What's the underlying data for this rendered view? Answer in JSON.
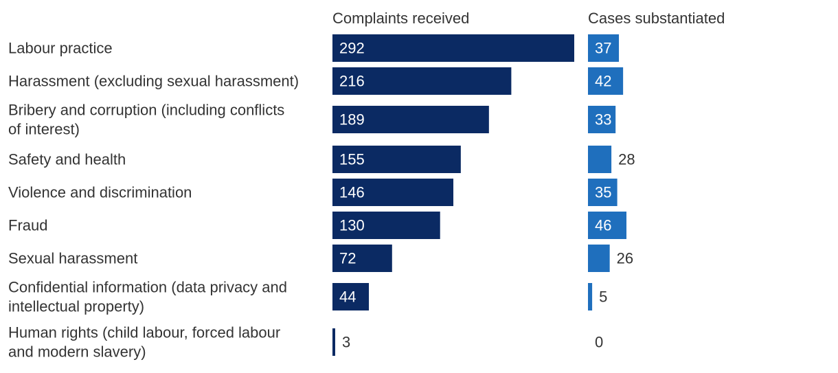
{
  "colors": {
    "complaints": "#0b2a63",
    "substantiated": "#1f6fbd",
    "text": "#333333",
    "label_inside": "#ffffff"
  },
  "chart_data": {
    "type": "bar",
    "orientation": "horizontal",
    "categories": [
      [
        "Labour practice"
      ],
      [
        "Harassment (excluding sexual harassment)"
      ],
      [
        "Bribery and corruption (including conflicts",
        "of interest)"
      ],
      [
        "Safety and health"
      ],
      [
        "Violence and discrimination"
      ],
      [
        "Fraud"
      ],
      [
        "Sexual harassment"
      ],
      [
        "Confidential information (data privacy and",
        "intellectual property)"
      ],
      [
        "Human rights (child labour, forced labour",
        "and modern slavery)"
      ]
    ],
    "series": [
      {
        "name": "Complaints received",
        "values": [
          292,
          216,
          189,
          155,
          146,
          130,
          72,
          44,
          3
        ]
      },
      {
        "name": "Cases substantiated",
        "values": [
          37,
          42,
          33,
          28,
          35,
          46,
          26,
          5,
          0
        ]
      }
    ],
    "grid": false,
    "legend": "none"
  }
}
